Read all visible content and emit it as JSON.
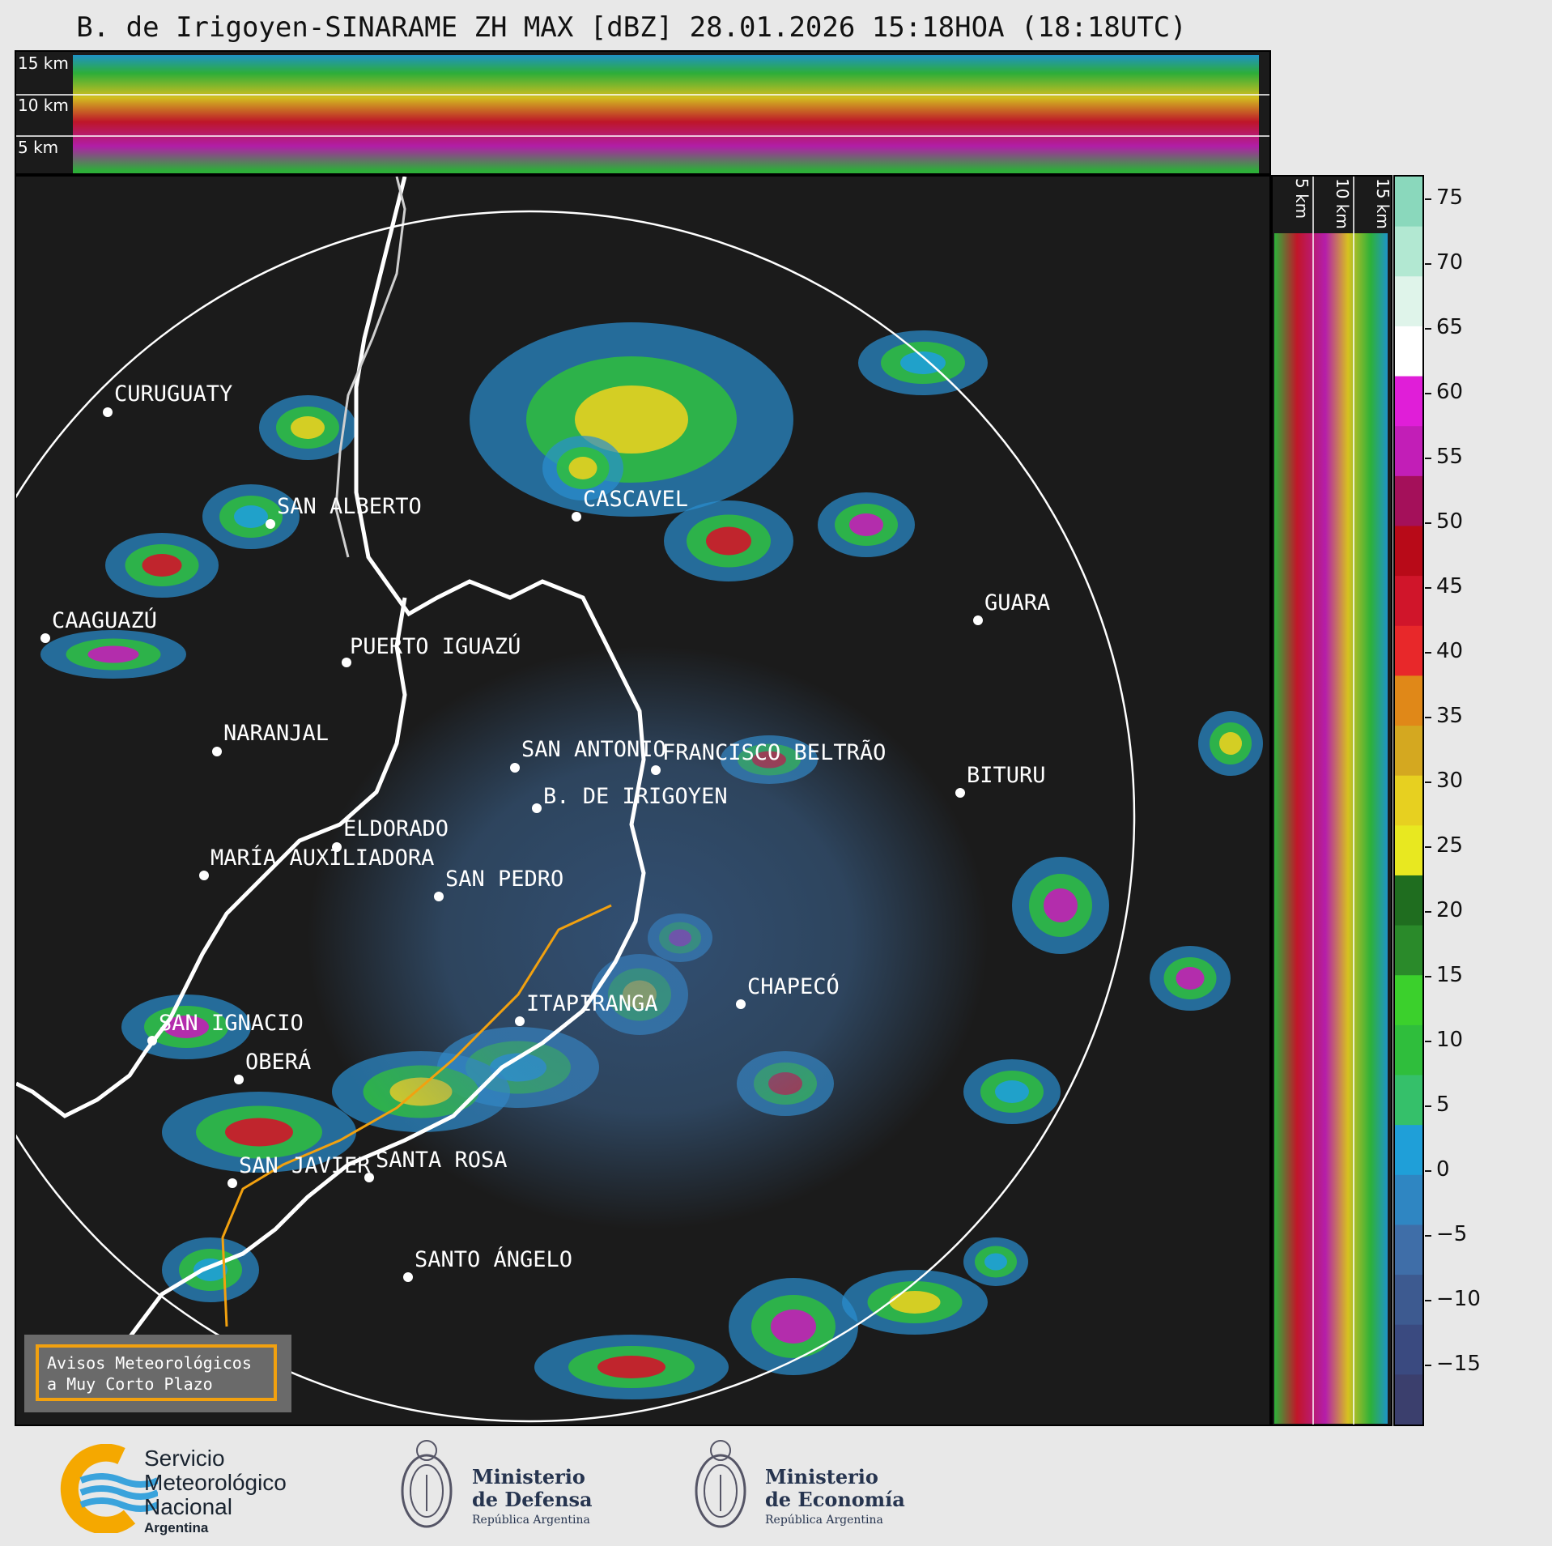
{
  "title": "B. de Irigoyen-SINARAME ZH MAX [dBZ] 28.01.2026 15:18HOA (18:18UTC)",
  "top_panel": {
    "height_labels": [
      "15 km",
      "10 km",
      "5 km"
    ]
  },
  "right_panel": {
    "height_labels": [
      "5 km",
      "10 km",
      "15 km"
    ]
  },
  "colorbar": {
    "ticks": [
      "75",
      "70",
      "65",
      "60",
      "55",
      "50",
      "45",
      "40",
      "35",
      "30",
      "25",
      "20",
      "15",
      "10",
      "5",
      "0",
      "−5",
      "−10",
      "−15"
    ]
  },
  "cities": [
    "CURUGUATY",
    "SAN ALBERTO",
    "CAAGUAZÚ",
    "CASCAVEL",
    "GUARA",
    "PUERTO IGUAZÚ",
    "NARANJAL",
    "SAN ANTONIO",
    "FRANCISCO BELTRÃO",
    "BITURU",
    "B. DE IRIGOYEN",
    "ELDORADO",
    "MARÍA AUXILIADORA",
    "SAN PEDRO",
    "CHAPECÓ",
    "ITAPIRANGA",
    "SAN IGNACIO",
    "OBERÁ",
    "SAN JAVIER",
    "SANTA ROSA",
    "SANTO ÁNGELO"
  ],
  "warning_box": {
    "line1": "Avisos Meteorológicos",
    "line2": "a Muy Corto Plazo"
  },
  "footer": {
    "smn": {
      "line1": "Servicio",
      "line2": "Meteorológico",
      "line3": "Nacional",
      "line4": "Argentina"
    },
    "defensa": {
      "line1": "Ministerio",
      "line2": "de Defensa",
      "line3": "República Argentina"
    },
    "economia": {
      "line1": "Ministerio",
      "line2": "de Economía",
      "line3": "República Argentina"
    }
  },
  "colors": {
    "ring": "#ffffff",
    "border": "#ffffff",
    "route": "#f2a10f",
    "panel_bg": "#1b1b1b"
  }
}
